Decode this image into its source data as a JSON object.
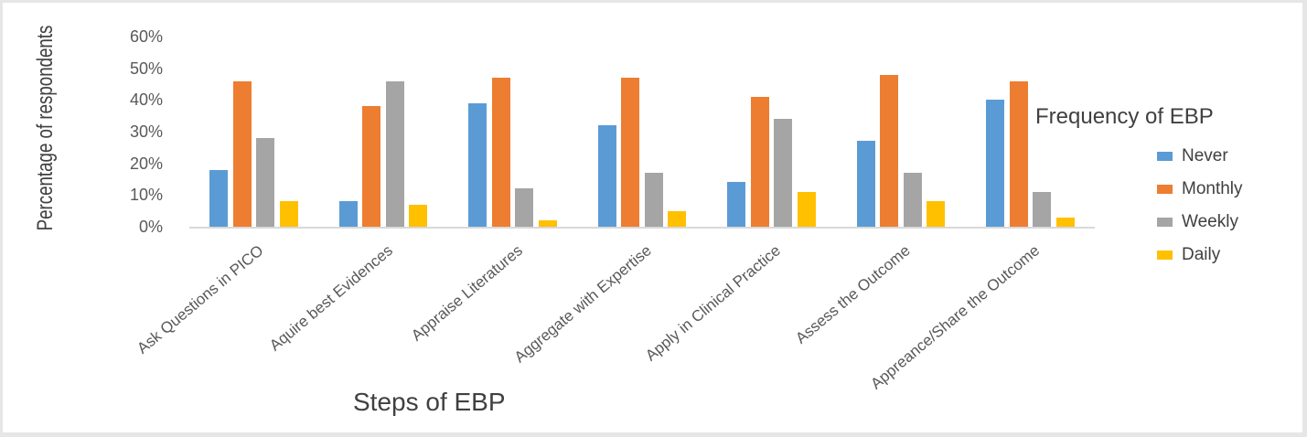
{
  "chart_data": {
    "type": "bar",
    "title": "",
    "xlabel": "Steps of EBP",
    "ylabel": "Percentage of respondents",
    "ylim": [
      0,
      60
    ],
    "yticks": [
      "0%",
      "10%",
      "20%",
      "30%",
      "40%",
      "50%",
      "60%"
    ],
    "grid": false,
    "legend_title": "Frequency of EBP",
    "legend_position": "right",
    "categories": [
      "Ask Questions in PICO",
      "Aquire best Evidences",
      "Appraise Literatures",
      "Aggregate with Expertise",
      "Apply in Clinical Practice",
      "Assess the Outcome",
      "Appreance/Share the Outcome"
    ],
    "series": [
      {
        "name": "Never",
        "color": "#5b9bd5",
        "values": [
          18,
          8,
          39,
          32,
          14,
          27,
          40
        ]
      },
      {
        "name": "Monthly",
        "color": "#ed7d31",
        "values": [
          46,
          38,
          47,
          47,
          41,
          48,
          46
        ]
      },
      {
        "name": "Weekly",
        "color": "#a5a5a5",
        "values": [
          28,
          46,
          12,
          17,
          34,
          17,
          11
        ]
      },
      {
        "name": "Daily",
        "color": "#ffc000",
        "values": [
          8,
          7,
          2,
          5,
          11,
          8,
          3
        ]
      }
    ]
  }
}
